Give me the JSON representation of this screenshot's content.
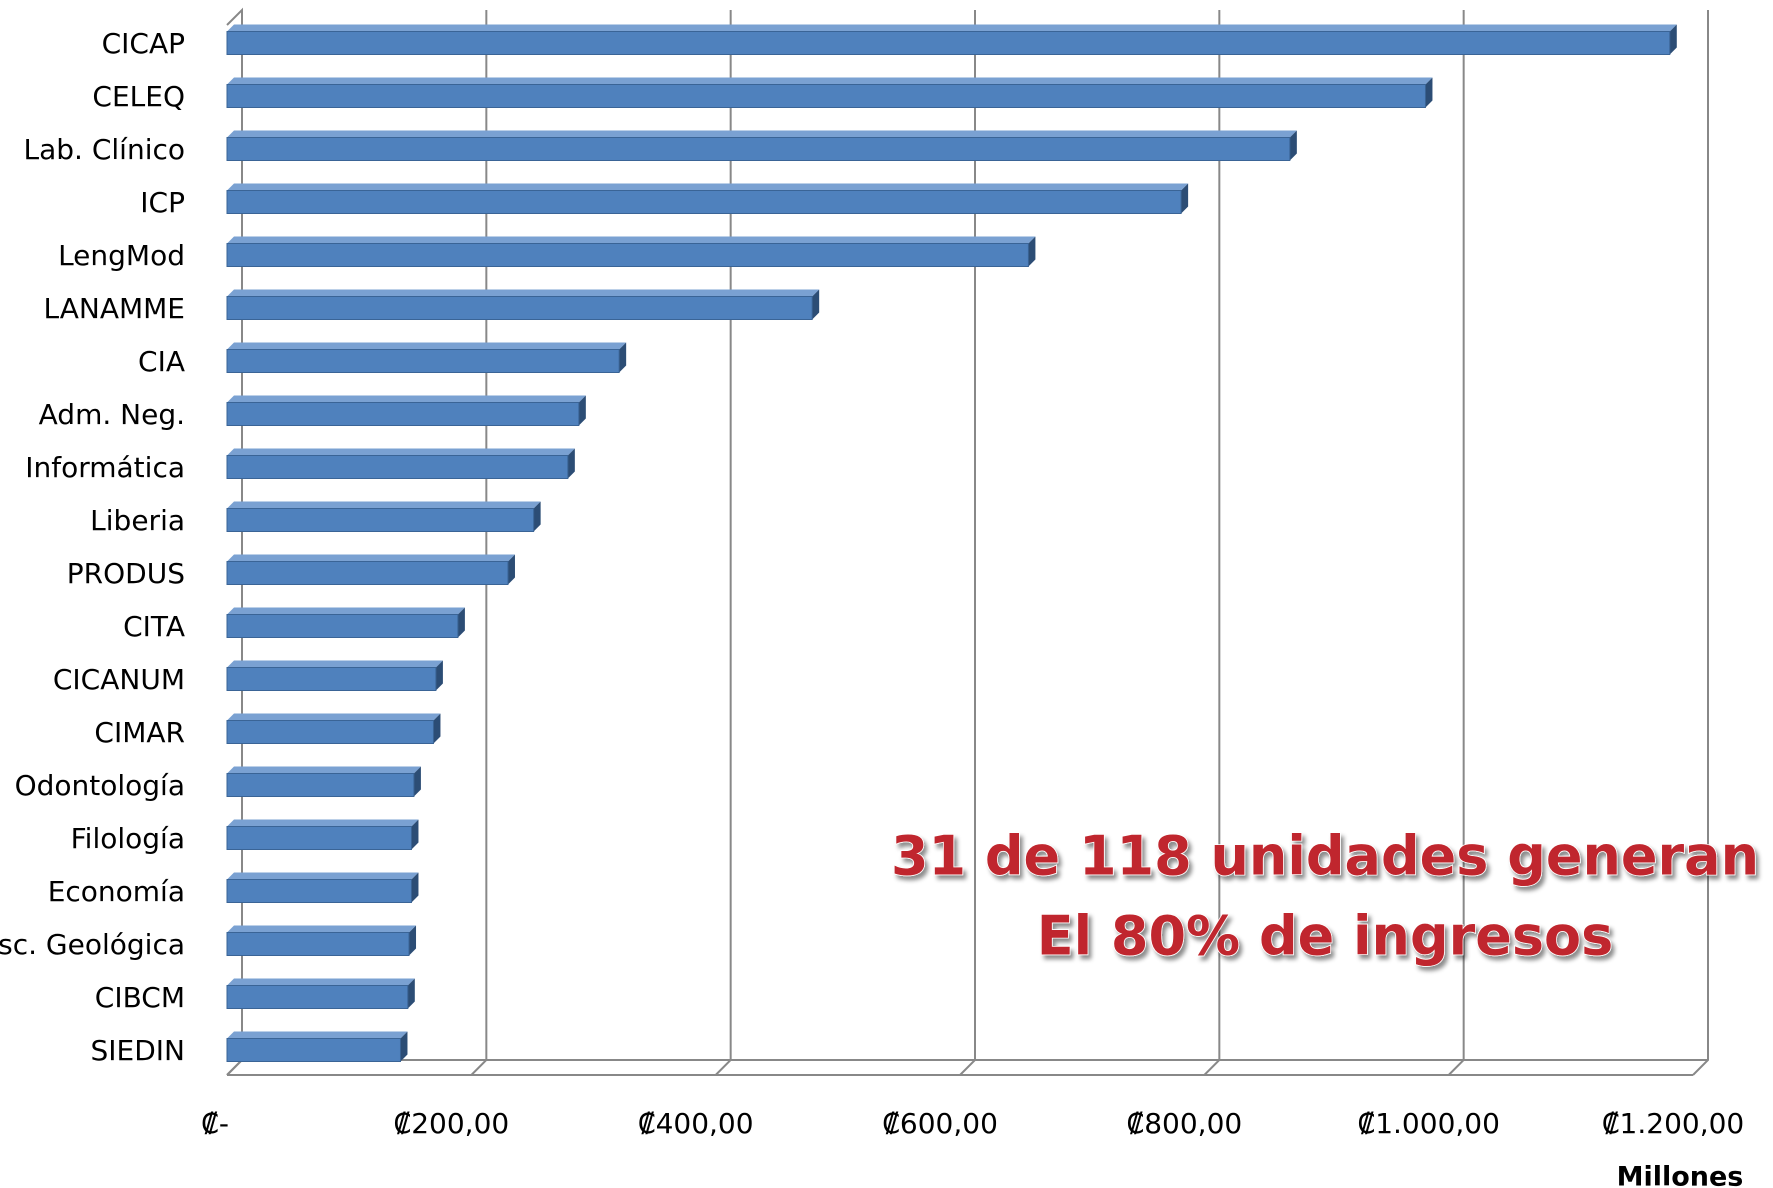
{
  "chart_data": {
    "type": "bar3d_horizontal",
    "categories": [
      "CICAP",
      "CELEQ",
      "Lab. Clínico",
      "ICP",
      "LengMod",
      "LANAMME",
      "CIA",
      "Adm. Neg.",
      "Informática",
      "Liberia",
      "PRODUS",
      "CITA",
      "CICANUM",
      "CIMAR",
      "Odontología",
      "Filología",
      "Economía",
      "Esc. Geológica",
      "CIBCM",
      "SIEDIN"
    ],
    "values": [
      1181,
      981,
      870,
      781,
      656,
      479,
      321,
      288,
      279,
      251,
      230,
      189,
      171,
      169,
      153,
      151,
      151,
      149,
      148,
      142
    ],
    "color": "#4f81bd",
    "xlim": [
      0,
      1200
    ],
    "xticks": [
      {
        "value": 0,
        "label": "₡-"
      },
      {
        "value": 200,
        "label": "₡200,00"
      },
      {
        "value": 400,
        "label": "₡400,00"
      },
      {
        "value": 600,
        "label": "₡600,00"
      },
      {
        "value": 800,
        "label": "₡800,00"
      },
      {
        "value": 1000,
        "label": "₡1.000,00"
      },
      {
        "value": 1200,
        "label": "₡1.200,00"
      }
    ],
    "xlabel": "Millones",
    "grid": true,
    "annotation": [
      "31 de 118 unidades generan",
      "El 80% de ingresos"
    ]
  }
}
